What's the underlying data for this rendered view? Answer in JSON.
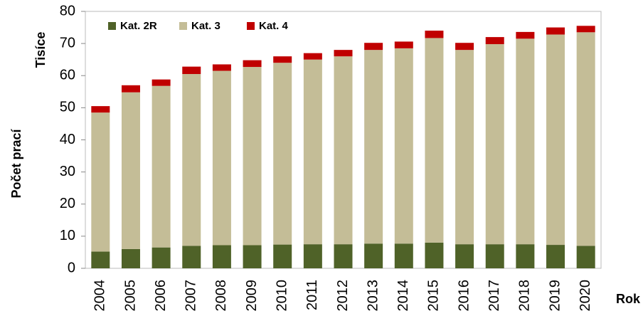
{
  "chart_data": {
    "type": "stacked_bar",
    "y_label": "Počet prací",
    "y_unit_label": "Tisíce",
    "x_label": "Rok",
    "categories": [
      "2004",
      "2005",
      "2006",
      "2007",
      "2008",
      "2009",
      "2010",
      "2011",
      "2012",
      "2013",
      "2014",
      "2015",
      "2016",
      "2017",
      "2018",
      "2019",
      "2020"
    ],
    "series": [
      {
        "name": "Kat. 2R",
        "color": "#4f6228",
        "values": [
          5.2,
          6,
          6.5,
          7,
          7.2,
          7.2,
          7.4,
          7.5,
          7.5,
          7.7,
          7.7,
          8,
          7.5,
          7.5,
          7.5,
          7.3,
          7
        ]
      },
      {
        "name": "Kat. 3",
        "color": "#c4bd97",
        "values": [
          43.3,
          48.8,
          50.3,
          53.5,
          54.3,
          55.5,
          56.6,
          57.5,
          58.5,
          60.3,
          60.8,
          63.7,
          60.5,
          62.3,
          64,
          65.5,
          66.5
        ]
      },
      {
        "name": "Kat. 4",
        "color": "#c00000",
        "values": [
          2,
          2.2,
          2,
          2.3,
          2,
          2.1,
          2,
          2,
          2,
          2.2,
          2.1,
          2.3,
          2.2,
          2.2,
          2.1,
          2.2,
          2
        ]
      }
    ],
    "ylim": [
      0,
      80
    ],
    "yticks": [
      0,
      10,
      20,
      30,
      40,
      50,
      60,
      70,
      80
    ],
    "legend": "top-left"
  }
}
